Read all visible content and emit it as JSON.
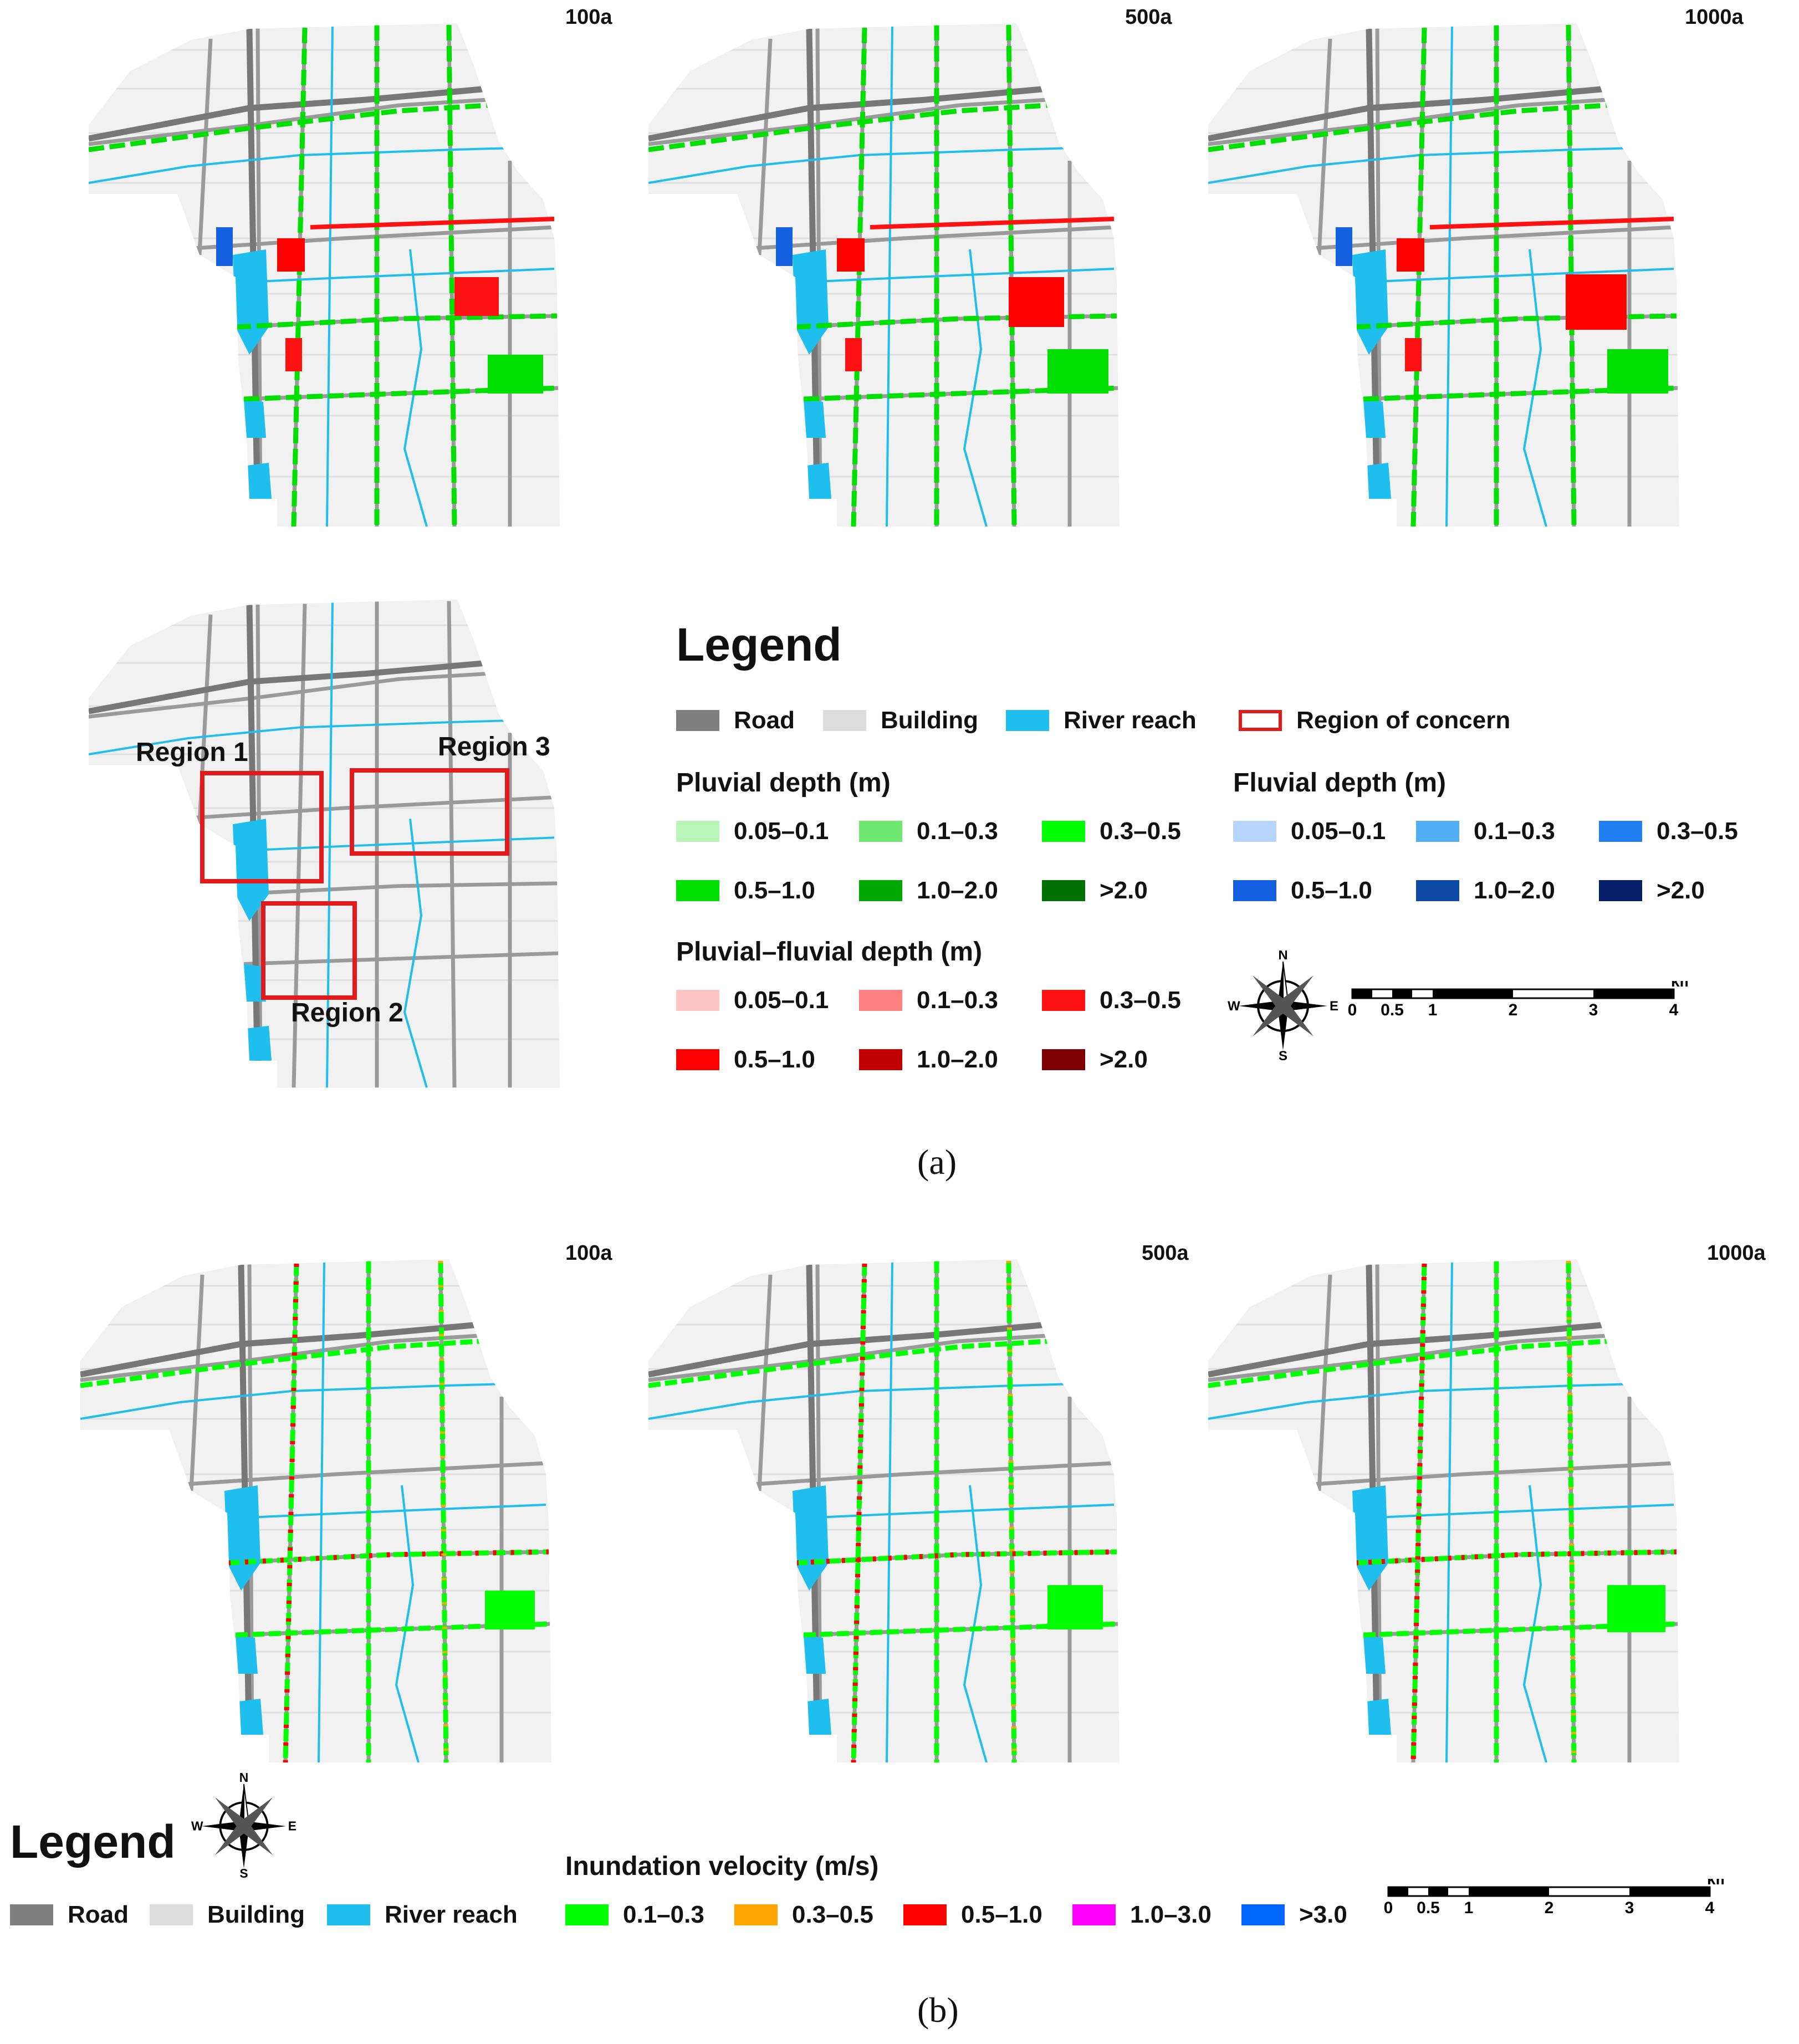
{
  "panel_a": {
    "maps": [
      {
        "title": "100a"
      },
      {
        "title": "500a"
      },
      {
        "title": "1000a"
      }
    ],
    "regions": [
      {
        "label": "Region 1"
      },
      {
        "label": "Region 2"
      },
      {
        "label": "Region 3"
      }
    ],
    "legend": {
      "title": "Legend",
      "base": [
        {
          "label": "Road",
          "color": "#7f7f7f"
        },
        {
          "label": "Building",
          "color": "#dcdcdc"
        },
        {
          "label": "River reach",
          "color": "#1ebfef"
        },
        {
          "label": "Region of concern",
          "color": "#e31a1c"
        }
      ],
      "pluvial": {
        "title": "Pluvial depth (m)",
        "classes": [
          {
            "label": "0.05–0.1",
            "color": "#b9f5b9"
          },
          {
            "label": "0.1–0.3",
            "color": "#6fe86f"
          },
          {
            "label": "0.3–0.5",
            "color": "#00ff00"
          },
          {
            "label": "0.5–1.0",
            "color": "#00e000"
          },
          {
            "label": "1.0–2.0",
            "color": "#00a800"
          },
          {
            "label": ">2.0",
            "color": "#007000"
          }
        ]
      },
      "fluvial": {
        "title": "Fluvial depth (m)",
        "classes": [
          {
            "label": "0.05–0.1",
            "color": "#b7d6fb"
          },
          {
            "label": "0.1–0.3",
            "color": "#50aef5"
          },
          {
            "label": "0.3–0.5",
            "color": "#1f7ff2"
          },
          {
            "label": "0.5–1.0",
            "color": "#1560e0"
          },
          {
            "label": "1.0–2.0",
            "color": "#0c4aa6"
          },
          {
            "label": ">2.0",
            "color": "#061f6b"
          }
        ]
      },
      "pluvial_fluvial": {
        "title": "Pluvial–fluvial depth (m)",
        "classes": [
          {
            "label": "0.05–0.1",
            "color": "#ffc4c4"
          },
          {
            "label": "0.1–0.3",
            "color": "#ff8080"
          },
          {
            "label": "0.3–0.5",
            "color": "#ff1111"
          },
          {
            "label": "0.5–1.0",
            "color": "#ff0000"
          },
          {
            "label": "1.0–2.0",
            "color": "#c00000"
          },
          {
            "label": ">2.0",
            "color": "#7f0000"
          }
        ]
      }
    },
    "compass": {
      "n": "N",
      "s": "S",
      "e": "E",
      "w": "W"
    },
    "scale": {
      "ticks": [
        "0",
        "0.5",
        "1",
        "2",
        "3",
        "4"
      ],
      "unit": "km"
    },
    "caption": "(a)"
  },
  "panel_b": {
    "maps": [
      {
        "title": "100a"
      },
      {
        "title": "500a"
      },
      {
        "title": "1000a"
      }
    ],
    "legend": {
      "title": "Legend",
      "base": [
        {
          "label": "Road",
          "color": "#7f7f7f"
        },
        {
          "label": "Building",
          "color": "#dcdcdc"
        },
        {
          "label": "River reach",
          "color": "#1ebfef"
        }
      ],
      "velocity": {
        "title": "Inundation velocity (m/s)",
        "classes": [
          {
            "label": "0.1–0.3",
            "color": "#00ff00"
          },
          {
            "label": "0.3–0.5",
            "color": "#ffa500"
          },
          {
            "label": "0.5–1.0",
            "color": "#ff0000"
          },
          {
            "label": "1.0–3.0",
            "color": "#ff00ff"
          },
          {
            "label": ">3.0",
            "color": "#0066ff"
          }
        ]
      }
    },
    "compass": {
      "n": "N",
      "s": "S",
      "e": "E",
      "w": "W"
    },
    "scale": {
      "ticks": [
        "0",
        "0.5",
        "1",
        "2",
        "3",
        "4"
      ],
      "unit": "km"
    },
    "caption": "(b)"
  }
}
